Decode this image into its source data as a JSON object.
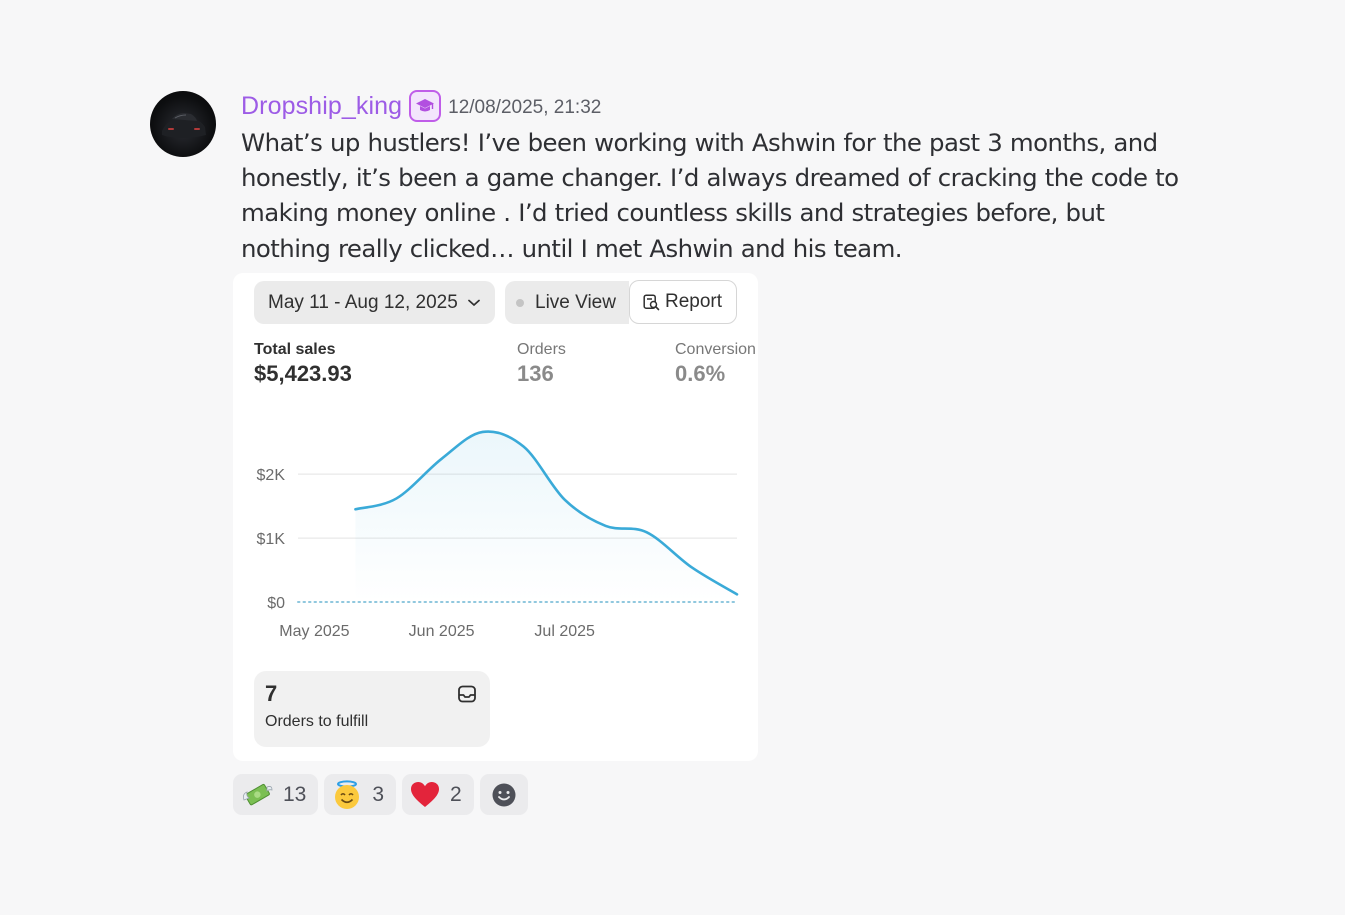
{
  "message": {
    "username": "Dropship_king",
    "timestamp": "12/08/2025, 21:32",
    "role_badge_icon": "graduation-cap-icon",
    "role_badge_color": "#c05de9",
    "username_color": "#9d5ce6",
    "content": "What’s up hustlers! I’ve been working with Ashwin for the past 3 months, and honestly, it’s been a game changer. I’d always dreamed of cracking the code to making money online . I’d tried countless skills and strategies before, but nothing really clicked… until I met Ashwin and his team."
  },
  "embed": {
    "date_range": "May 11 - Aug 12, 2025",
    "live_view_label": "Live View",
    "report_label": "Report",
    "metrics": {
      "total_sales": {
        "label": "Total sales",
        "value": "$5,423.93"
      },
      "orders": {
        "label": "Orders",
        "value": "136"
      },
      "conversion": {
        "label": "Conversion",
        "value": "0.6%"
      }
    },
    "fulfill": {
      "count": "7",
      "label": "Orders to fulfill"
    }
  },
  "chart_data": {
    "type": "line",
    "title": "",
    "xlabel": "",
    "ylabel": "",
    "x_ticks": [
      "May 2025",
      "Jun 2025",
      "Jul 2025"
    ],
    "y_ticks": [
      "$0",
      "$1K",
      "$2K"
    ],
    "ylim": [
      0,
      2800
    ],
    "grid": true,
    "series": [
      {
        "color": "#3aaad8",
        "x": [
          "2025-05-11",
          "2025-05-21",
          "2025-06-01",
          "2025-06-11",
          "2025-06-21",
          "2025-07-01",
          "2025-07-11",
          "2025-07-21",
          "2025-08-01",
          "2025-08-12"
        ],
        "y": [
          1450,
          1620,
          2240,
          2660,
          2430,
          1600,
          1190,
          1090,
          540,
          120
        ]
      }
    ],
    "baseline_series": {
      "color": "#8fc7de",
      "style": "dotted",
      "y": 0
    }
  },
  "reactions": [
    {
      "emoji": "💸",
      "icon": "money-with-wings-icon",
      "count": "13"
    },
    {
      "emoji": "😇",
      "icon": "smiling-face-with-halo-icon",
      "count": "3"
    },
    {
      "emoji": "❤️",
      "icon": "red-heart-icon",
      "count": "2"
    }
  ],
  "add_reaction_icon": "smiley-add-reaction-icon"
}
